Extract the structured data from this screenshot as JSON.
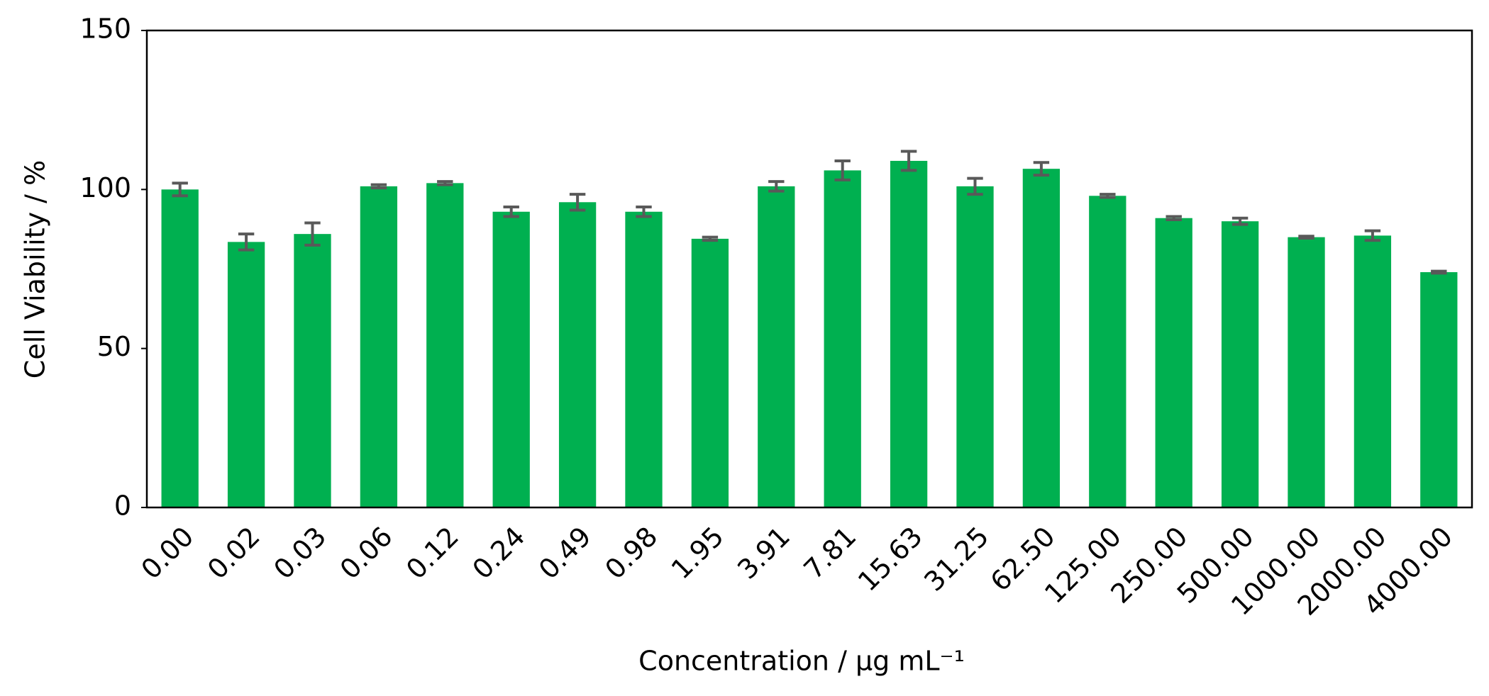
{
  "chart_data": {
    "type": "bar",
    "x_label": "Concentration / µg mL⁻¹",
    "y_label": "Cell Viability / %",
    "categories": [
      "0.00",
      "0.02",
      "0.03",
      "0.06",
      "0.12",
      "0.24",
      "0.49",
      "0.98",
      "1.95",
      "3.91",
      "7.81",
      "15.63",
      "31.25",
      "62.50",
      "125.00",
      "250.00",
      "500.00",
      "1000.00",
      "2000.00",
      "4000.00"
    ],
    "values": [
      100,
      83.5,
      86,
      101,
      102,
      93,
      96,
      93,
      84.5,
      101,
      106,
      109,
      101,
      106.5,
      98,
      91,
      90,
      85,
      85.5,
      74
    ],
    "errors": [
      2,
      2.5,
      3.5,
      0.5,
      0.5,
      1.5,
      2.5,
      1.5,
      0.5,
      1.5,
      3,
      3,
      2.5,
      2,
      0.5,
      0.5,
      1,
      0.3,
      1.5,
      0.3
    ],
    "color": "#00b050",
    "error_color": "#595959",
    "ylim": [
      0,
      150
    ],
    "yticks": [
      0,
      50,
      100,
      150
    ],
    "grid": false
  }
}
